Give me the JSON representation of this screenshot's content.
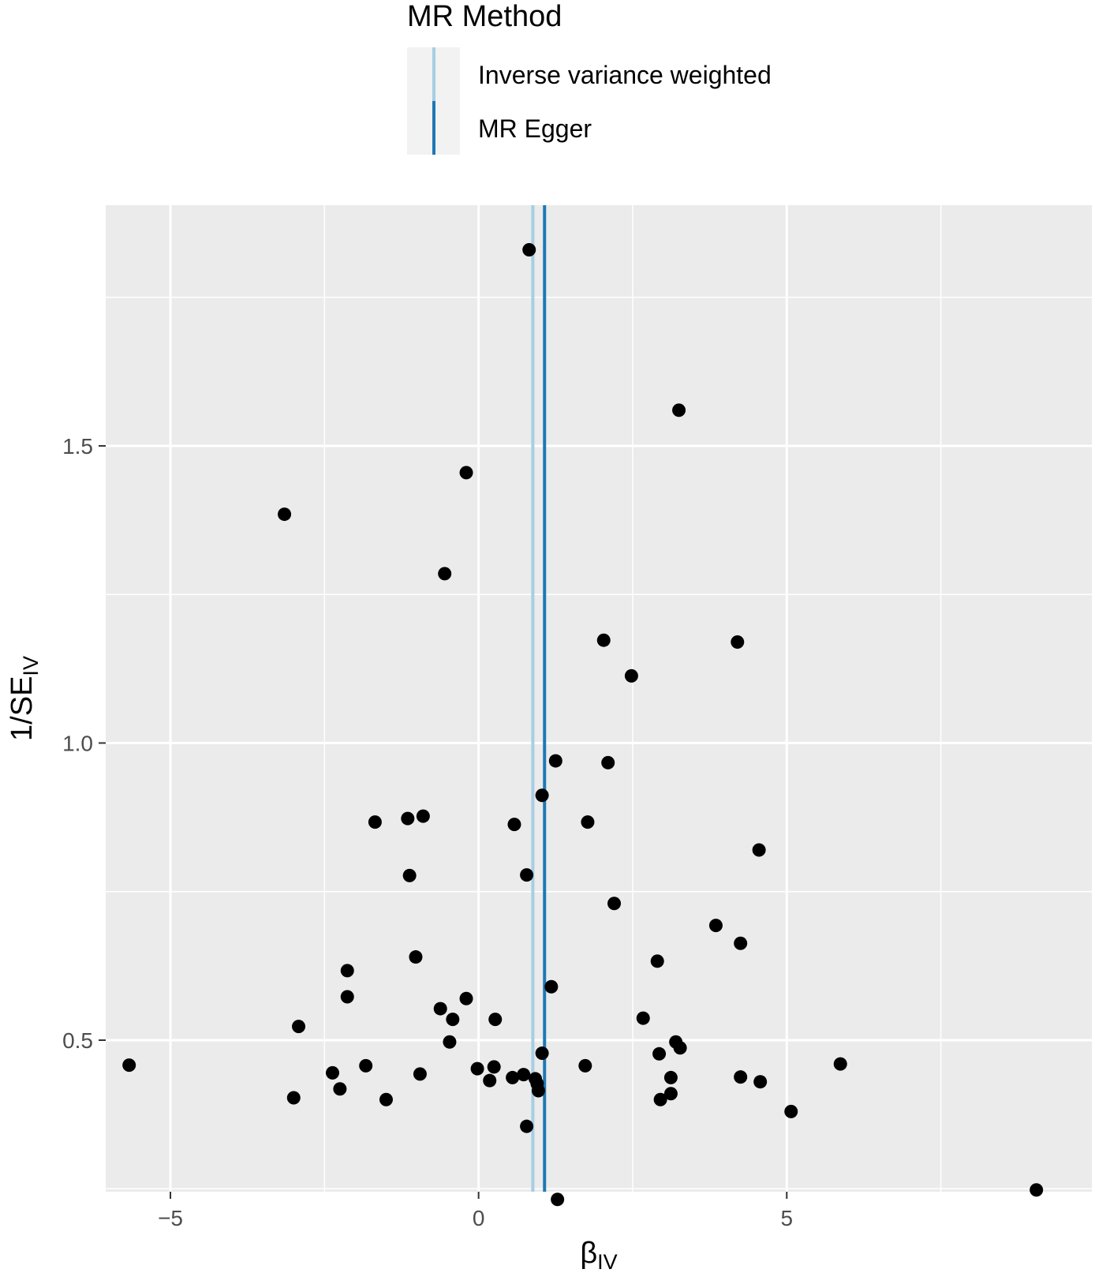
{
  "chart_data": {
    "type": "scatter",
    "title": "",
    "xlabel": {
      "main": "β",
      "sub": "IV"
    },
    "ylabel": {
      "main": "1/SE",
      "sub": "IV"
    },
    "xlim": [
      -6.05,
      9.95
    ],
    "ylim": [
      0.245,
      1.905
    ],
    "x_ticks": [
      -5,
      0,
      5
    ],
    "x_tick_labels": [
      "−5",
      "0",
      "5"
    ],
    "x_minor_ticks": [
      -2.5,
      2.5,
      7.5
    ],
    "y_ticks": [
      0.5,
      1.0,
      1.5
    ],
    "y_tick_labels": [
      "0.5",
      "1.0",
      "1.5"
    ],
    "y_minor_ticks": [
      0.25,
      0.75,
      1.25,
      1.75
    ],
    "grid": true,
    "panel_background": "#ebebeb",
    "legend": {
      "title": "MR Method",
      "position": "top",
      "entries": [
        {
          "label": "Inverse variance weighted",
          "color": "#a6cee3"
        },
        {
          "label": "MR Egger",
          "color": "#1f78b4"
        }
      ]
    },
    "vlines": [
      {
        "name": "Inverse variance weighted",
        "x": 0.88,
        "color": "#a6cee3"
      },
      {
        "name": "MR Egger",
        "x": 1.07,
        "color": "#1f78b4"
      }
    ],
    "points": [
      {
        "x": 0.82,
        "y": 1.83
      },
      {
        "x": 3.25,
        "y": 1.56
      },
      {
        "x": -0.2,
        "y": 1.455
      },
      {
        "x": -3.15,
        "y": 1.385
      },
      {
        "x": -0.55,
        "y": 1.285
      },
      {
        "x": 2.03,
        "y": 1.173
      },
      {
        "x": 4.2,
        "y": 1.17
      },
      {
        "x": 2.48,
        "y": 1.113
      },
      {
        "x": 1.25,
        "y": 0.97
      },
      {
        "x": 2.1,
        "y": 0.967
      },
      {
        "x": 1.03,
        "y": 0.912
      },
      {
        "x": -0.9,
        "y": 0.877
      },
      {
        "x": -1.15,
        "y": 0.873
      },
      {
        "x": -1.68,
        "y": 0.867
      },
      {
        "x": 0.58,
        "y": 0.863
      },
      {
        "x": 1.77,
        "y": 0.867
      },
      {
        "x": 4.55,
        "y": 0.82
      },
      {
        "x": -1.12,
        "y": 0.777
      },
      {
        "x": 0.78,
        "y": 0.778
      },
      {
        "x": 2.2,
        "y": 0.73
      },
      {
        "x": 3.85,
        "y": 0.693
      },
      {
        "x": 4.25,
        "y": 0.663
      },
      {
        "x": -1.02,
        "y": 0.64
      },
      {
        "x": 2.9,
        "y": 0.633
      },
      {
        "x": -2.13,
        "y": 0.617
      },
      {
        "x": 1.18,
        "y": 0.59
      },
      {
        "x": -2.13,
        "y": 0.573
      },
      {
        "x": -0.2,
        "y": 0.57
      },
      {
        "x": -0.62,
        "y": 0.553
      },
      {
        "x": -0.42,
        "y": 0.535
      },
      {
        "x": 0.27,
        "y": 0.535
      },
      {
        "x": 2.67,
        "y": 0.537
      },
      {
        "x": -2.92,
        "y": 0.523
      },
      {
        "x": -0.47,
        "y": 0.497
      },
      {
        "x": 3.2,
        "y": 0.497
      },
      {
        "x": 3.27,
        "y": 0.487
      },
      {
        "x": 1.03,
        "y": 0.478
      },
      {
        "x": 2.93,
        "y": 0.477
      },
      {
        "x": -5.67,
        "y": 0.458
      },
      {
        "x": -1.83,
        "y": 0.457
      },
      {
        "x": 0.25,
        "y": 0.455
      },
      {
        "x": 1.73,
        "y": 0.457
      },
      {
        "x": 5.87,
        "y": 0.46
      },
      {
        "x": -0.02,
        "y": 0.452
      },
      {
        "x": -2.37,
        "y": 0.445
      },
      {
        "x": -0.95,
        "y": 0.443
      },
      {
        "x": 0.73,
        "y": 0.442
      },
      {
        "x": 0.55,
        "y": 0.437
      },
      {
        "x": 0.92,
        "y": 0.435
      },
      {
        "x": 3.12,
        "y": 0.437
      },
      {
        "x": 4.25,
        "y": 0.438
      },
      {
        "x": 0.18,
        "y": 0.432
      },
      {
        "x": 0.95,
        "y": 0.427
      },
      {
        "x": 4.57,
        "y": 0.43
      },
      {
        "x": -2.25,
        "y": 0.418
      },
      {
        "x": 0.97,
        "y": 0.415
      },
      {
        "x": 3.12,
        "y": 0.41
      },
      {
        "x": -3.0,
        "y": 0.403
      },
      {
        "x": -1.5,
        "y": 0.4
      },
      {
        "x": 2.95,
        "y": 0.4
      },
      {
        "x": 5.07,
        "y": 0.38
      },
      {
        "x": 0.78,
        "y": 0.355
      },
      {
        "x": 9.05,
        "y": 0.248
      },
      {
        "x": 1.28,
        "y": 0.232
      }
    ]
  }
}
